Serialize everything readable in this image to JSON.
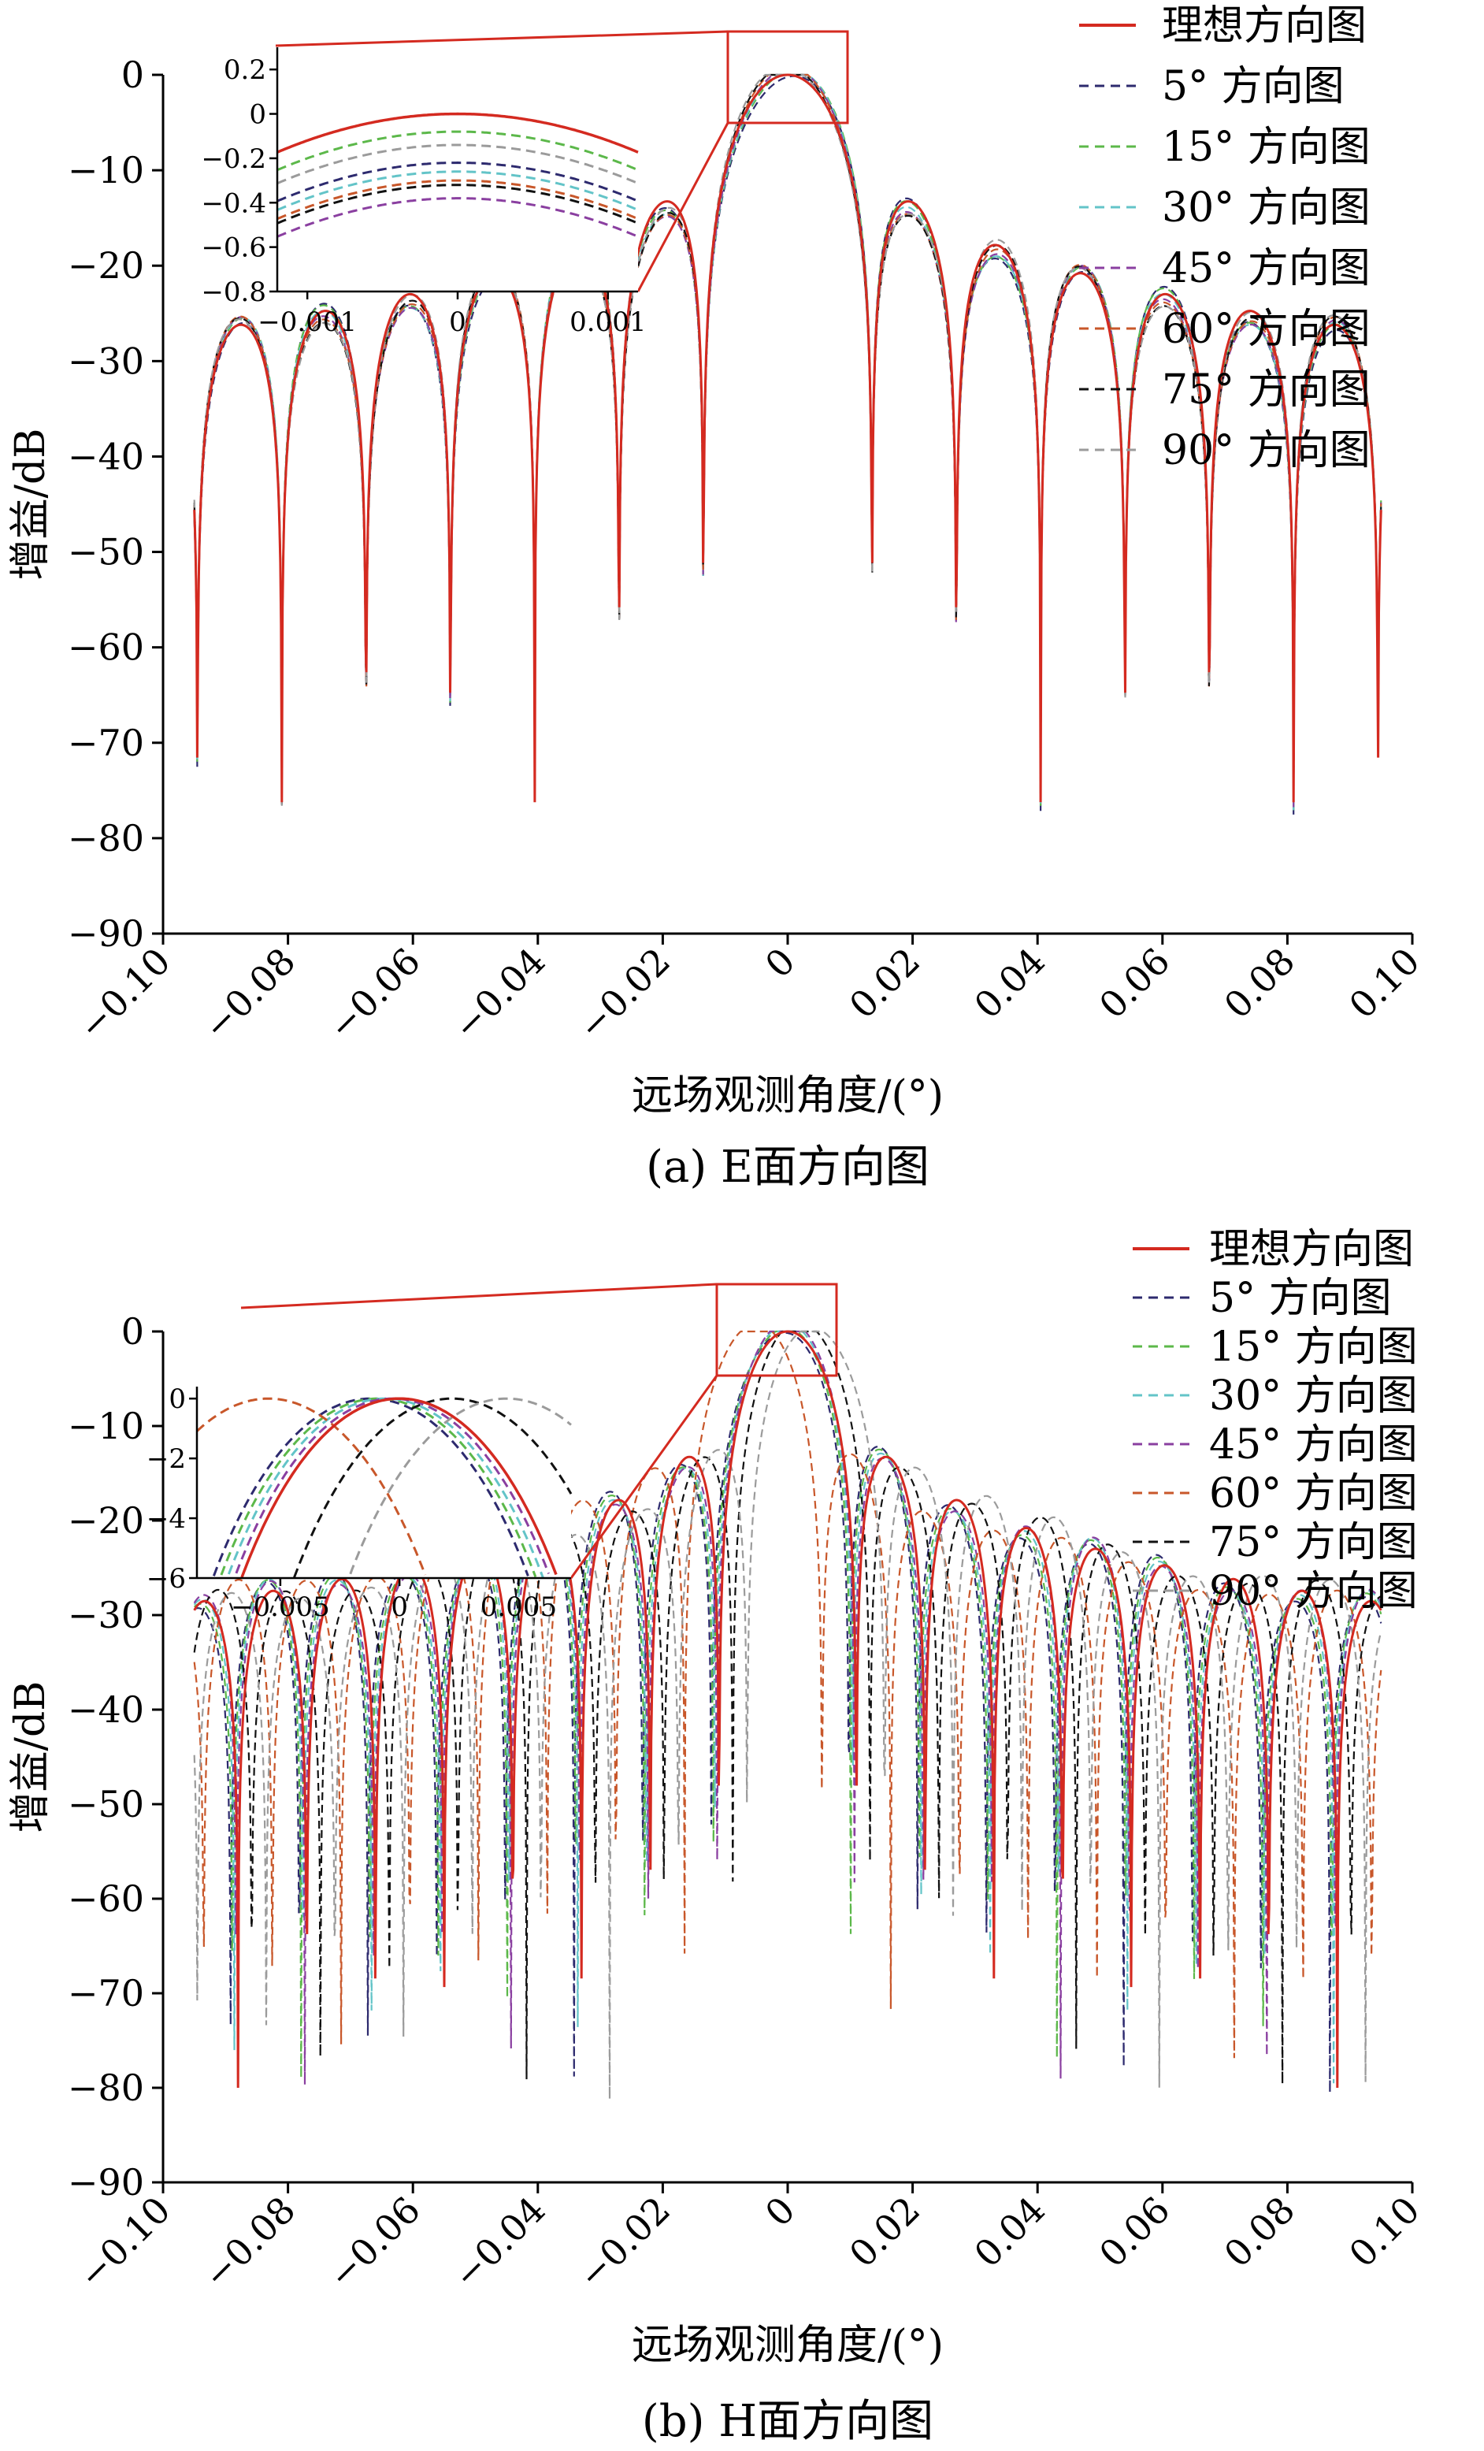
{
  "colors": {
    "ideal": "#d42a20",
    "s5": "#2d2a6e",
    "s15": "#5cb84a",
    "s30": "#63c4c8",
    "s45": "#8a3fa0",
    "s60": "#c8572a",
    "s75": "#111111",
    "s90": "#9b9b9b"
  },
  "chart_data": [
    {
      "type": "line",
      "caption": "(a)  E面方向图",
      "xlabel": "远场观测角度/(°)",
      "ylabel": "增益/dB",
      "xlim": [
        -0.1,
        0.1
      ],
      "ylim": [
        -90,
        0
      ],
      "xticks": [
        "−0.10",
        "−0.08",
        "−0.06",
        "−0.04",
        "−0.02",
        "0",
        "0.02",
        "0.04",
        "0.06",
        "0.08",
        "0.10"
      ],
      "yticks": [
        "0",
        "−10",
        "−20",
        "−30",
        "−40",
        "−50",
        "−60",
        "−70",
        "−80",
        "−90"
      ],
      "legend": [
        "理想方向图",
        "5° 方向图",
        "15° 方向图",
        "30° 方向图",
        "45° 方向图",
        "60° 方向图",
        "75° 方向图",
        "90° 方向图"
      ],
      "grid": false,
      "legend_position": "top-right",
      "main_lobe_half_width": 0.0135,
      "series": [
        {
          "key": "ideal",
          "peak": 0.0,
          "shift": 0.0,
          "dash": false
        },
        {
          "key": "s5",
          "peak": -0.22,
          "shift": 0.0,
          "dash": true
        },
        {
          "key": "s15",
          "peak": -0.08,
          "shift": 0.0,
          "dash": true
        },
        {
          "key": "s30",
          "peak": -0.26,
          "shift": 0.0,
          "dash": true
        },
        {
          "key": "s45",
          "peak": -0.38,
          "shift": 0.0,
          "dash": true
        },
        {
          "key": "s60",
          "peak": -0.3,
          "shift": 0.0,
          "dash": true
        },
        {
          "key": "s75",
          "peak": -0.32,
          "shift": 0.0,
          "dash": true
        },
        {
          "key": "s90",
          "peak": -0.14,
          "shift": 0.0,
          "dash": true
        }
      ],
      "inset": {
        "xlim": [
          -0.0012,
          0.0012
        ],
        "ylim": [
          -0.8,
          0.3
        ],
        "xticks": [
          "−0.001",
          "0",
          "0.001"
        ],
        "yticks": [
          "0.2",
          "0",
          "−0.2",
          "−0.4",
          "−0.6",
          "−0.8"
        ]
      }
    },
    {
      "type": "line",
      "caption": "(b)  H面方向图",
      "xlabel": "远场观测角度/(°)",
      "ylabel": "增益/dB",
      "xlim": [
        -0.1,
        0.1
      ],
      "ylim": [
        -90,
        0
      ],
      "xticks": [
        "−0.10",
        "−0.08",
        "−0.06",
        "−0.04",
        "−0.02",
        "0",
        "0.02",
        "0.04",
        "0.06",
        "0.08",
        "0.10"
      ],
      "yticks": [
        "0",
        "−10",
        "−20",
        "−30",
        "−40",
        "−50",
        "−60",
        "−70",
        "−80",
        "−90"
      ],
      "legend": [
        "理想方向图",
        "5° 方向图",
        "15° 方向图",
        "30° 方向图",
        "45° 方向图",
        "60° 方向图",
        "75° 方向图",
        "90° 方向图"
      ],
      "grid": false,
      "legend_position": "top-right",
      "main_lobe_half_width": 0.011,
      "series": [
        {
          "key": "ideal",
          "peak": 0,
          "shift": 0.0,
          "dash": false
        },
        {
          "key": "s5",
          "peak": 0,
          "shift": -0.0012,
          "dash": true
        },
        {
          "key": "s15",
          "peak": 0,
          "shift": -0.0009,
          "dash": true
        },
        {
          "key": "s30",
          "peak": 0,
          "shift": -0.0006,
          "dash": true
        },
        {
          "key": "s45",
          "peak": 0,
          "shift": -0.0003,
          "dash": true
        },
        {
          "key": "s60",
          "peak": 0,
          "shift": -0.0055,
          "dash": true
        },
        {
          "key": "s75",
          "peak": 0,
          "shift": 0.0022,
          "dash": true
        },
        {
          "key": "s90",
          "peak": 0,
          "shift": 0.0045,
          "dash": true
        }
      ],
      "inset": {
        "xlim": [
          -0.0085,
          0.0072
        ],
        "ylim": [
          -6,
          0.4
        ],
        "xticks": [
          "−0.005",
          "0",
          "0.005"
        ],
        "yticks": [
          "0",
          "−2",
          "−4",
          "−6"
        ]
      }
    }
  ]
}
